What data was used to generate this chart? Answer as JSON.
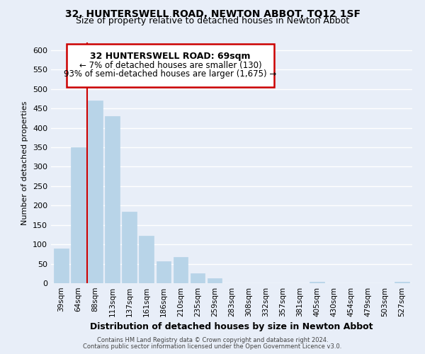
{
  "title": "32, HUNTERSWELL ROAD, NEWTON ABBOT, TQ12 1SF",
  "subtitle": "Size of property relative to detached houses in Newton Abbot",
  "xlabel": "Distribution of detached houses by size in Newton Abbot",
  "ylabel": "Number of detached properties",
  "bar_labels": [
    "39sqm",
    "64sqm",
    "88sqm",
    "113sqm",
    "137sqm",
    "161sqm",
    "186sqm",
    "210sqm",
    "235sqm",
    "259sqm",
    "283sqm",
    "308sqm",
    "332sqm",
    "357sqm",
    "381sqm",
    "405sqm",
    "430sqm",
    "454sqm",
    "479sqm",
    "503sqm",
    "527sqm"
  ],
  "bar_values": [
    90,
    350,
    470,
    430,
    185,
    123,
    57,
    68,
    25,
    13,
    0,
    0,
    0,
    0,
    0,
    3,
    0,
    0,
    0,
    0,
    3
  ],
  "bar_color": "#b8d4e8",
  "highlight_color": "#cc0000",
  "ylim": [
    0,
    620
  ],
  "yticks": [
    0,
    50,
    100,
    150,
    200,
    250,
    300,
    350,
    400,
    450,
    500,
    550,
    600
  ],
  "annotation_title": "32 HUNTERSWELL ROAD: 69sqm",
  "annotation_line1": "← 7% of detached houses are smaller (130)",
  "annotation_line2": "93% of semi-detached houses are larger (1,675) →",
  "vline_x": 1.5,
  "footer1": "Contains HM Land Registry data © Crown copyright and database right 2024.",
  "footer2": "Contains public sector information licensed under the Open Government Licence v3.0.",
  "bg_color": "#e8eef8",
  "grid_color": "#ffffff",
  "title_fontsize": 10,
  "subtitle_fontsize": 9
}
